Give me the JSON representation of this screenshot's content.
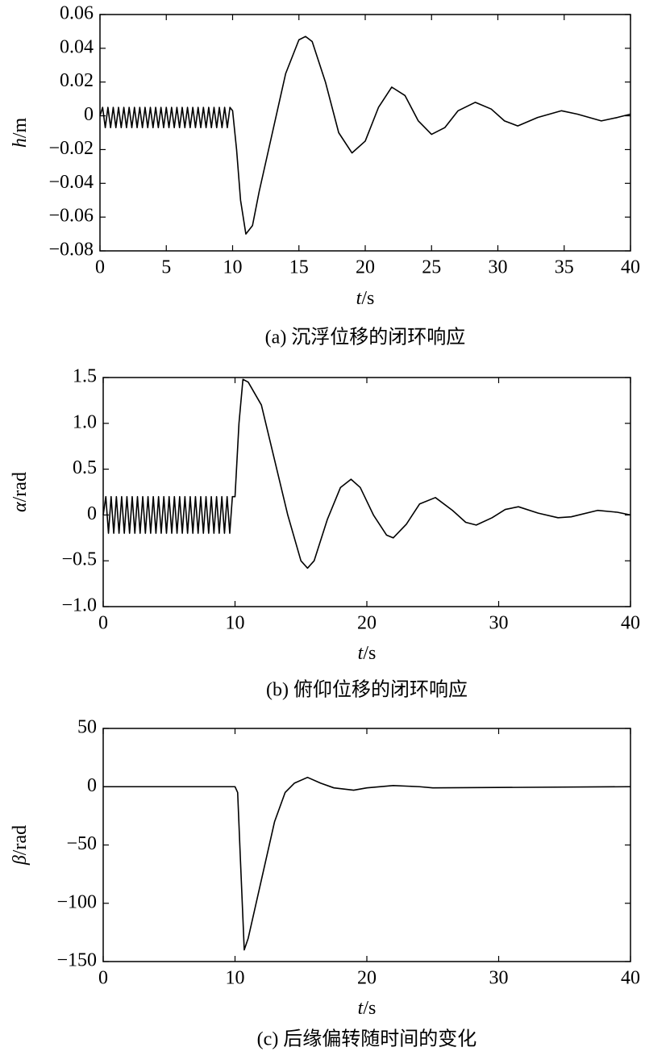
{
  "chart_data": [
    {
      "type": "line",
      "xlabel": "t/s",
      "ylabel": "h/m",
      "caption": "(a) 沉浮位移的闭环响应",
      "color": "#000000",
      "xlim": [
        0,
        40
      ],
      "xticks": [
        0,
        5,
        10,
        15,
        20,
        25,
        30,
        35,
        40
      ],
      "ylim": [
        -0.08,
        0.06
      ],
      "yticks": [
        {
          "value": -0.08,
          "label": "−0.08"
        },
        {
          "value": -0.06,
          "label": "−0.06"
        },
        {
          "value": -0.04,
          "label": "−0.04"
        },
        {
          "value": -0.02,
          "label": "−0.02"
        },
        0,
        0.02,
        0.04,
        0.06
      ],
      "x": [
        0,
        0.2,
        0.4,
        0.6,
        0.8,
        1,
        1.2,
        1.4,
        1.6,
        1.8,
        2,
        2.2,
        2.4,
        2.6,
        2.8,
        3,
        3.2,
        3.4,
        3.6,
        3.8,
        4,
        4.2,
        4.4,
        4.6,
        4.8,
        5,
        5.2,
        5.4,
        5.6,
        5.8,
        6,
        6.2,
        6.4,
        6.6,
        6.8,
        7,
        7.2,
        7.4,
        7.6,
        7.8,
        8,
        8.2,
        8.4,
        8.6,
        8.8,
        9,
        9.2,
        9.4,
        9.6,
        9.8,
        10,
        10.3,
        10.6,
        11,
        11.5,
        12,
        13,
        14,
        15,
        15.5,
        16,
        17,
        18,
        19,
        20,
        21,
        22,
        23,
        24,
        25,
        26,
        27,
        28.3,
        29.5,
        30.5,
        31.5,
        33,
        34.8,
        36,
        37.8,
        39,
        40
      ],
      "values": [
        0,
        0.005,
        -0.007,
        0.005,
        -0.007,
        0.005,
        -0.007,
        0.005,
        -0.007,
        0.005,
        -0.007,
        0.005,
        -0.007,
        0.005,
        -0.007,
        0.005,
        -0.007,
        0.005,
        -0.007,
        0.005,
        -0.007,
        0.005,
        -0.007,
        0.005,
        -0.007,
        0.005,
        -0.007,
        0.005,
        -0.007,
        0.005,
        -0.007,
        0.005,
        -0.007,
        0.005,
        -0.007,
        0.005,
        -0.007,
        0.005,
        -0.007,
        0.005,
        -0.007,
        0.005,
        -0.007,
        0.005,
        -0.007,
        0.005,
        -0.007,
        0.005,
        -0.007,
        0.005,
        0.003,
        -0.02,
        -0.05,
        -0.07,
        -0.065,
        -0.045,
        -0.01,
        0.025,
        0.045,
        0.047,
        0.044,
        0.02,
        -0.01,
        -0.022,
        -0.015,
        0.005,
        0.017,
        0.012,
        -0.003,
        -0.011,
        -0.007,
        0.003,
        0.008,
        0.004,
        -0.003,
        -0.006,
        -0.001,
        0.003,
        0.001,
        -0.003,
        -0.001,
        0.001
      ]
    },
    {
      "type": "line",
      "xlabel": "t/s",
      "ylabel": "α/rad",
      "caption": "(b) 俯仰位移的闭环响应",
      "color": "#000000",
      "xlim": [
        0,
        40
      ],
      "xticks": [
        0,
        10,
        20,
        30,
        40
      ],
      "ylim": [
        -1.0,
        1.5
      ],
      "yticks": [
        {
          "value": -1.0,
          "label": "−1.0"
        },
        {
          "value": -0.5,
          "label": "−0.5"
        },
        0,
        0.5,
        {
          "value": 1.0,
          "label": "1.0"
        },
        1.5
      ],
      "x": [
        0,
        0.2,
        0.4,
        0.6,
        0.8,
        1,
        1.2,
        1.4,
        1.6,
        1.8,
        2,
        2.2,
        2.4,
        2.6,
        2.8,
        3,
        3.2,
        3.4,
        3.6,
        3.8,
        4,
        4.2,
        4.4,
        4.6,
        4.8,
        5,
        5.2,
        5.4,
        5.6,
        5.8,
        6,
        6.2,
        6.4,
        6.6,
        6.8,
        7,
        7.2,
        7.4,
        7.6,
        7.8,
        8,
        8.2,
        8.4,
        8.6,
        8.8,
        9,
        9.2,
        9.4,
        9.6,
        9.8,
        10,
        10.3,
        10.6,
        11,
        12,
        13,
        14,
        15,
        15.5,
        16,
        17,
        18,
        18.8,
        19.5,
        20.5,
        21.5,
        22,
        23,
        24,
        25.2,
        26.5,
        27.5,
        28.3,
        29.5,
        30.5,
        31.5,
        33,
        34.5,
        35.5,
        37.5,
        39,
        40
      ],
      "values": [
        0,
        0.2,
        -0.2,
        0.2,
        -0.2,
        0.2,
        -0.2,
        0.2,
        -0.2,
        0.2,
        -0.2,
        0.2,
        -0.2,
        0.2,
        -0.2,
        0.2,
        -0.2,
        0.2,
        -0.2,
        0.2,
        -0.2,
        0.2,
        -0.2,
        0.2,
        -0.2,
        0.2,
        -0.2,
        0.2,
        -0.2,
        0.2,
        -0.2,
        0.2,
        -0.2,
        0.2,
        -0.2,
        0.2,
        -0.2,
        0.2,
        -0.2,
        0.2,
        -0.2,
        0.2,
        -0.2,
        0.2,
        -0.2,
        0.2,
        -0.2,
        0.2,
        -0.2,
        0.2,
        0.2,
        1.0,
        1.48,
        1.45,
        1.2,
        0.6,
        0,
        -0.5,
        -0.58,
        -0.5,
        -0.05,
        0.3,
        0.39,
        0.3,
        0,
        -0.22,
        -0.25,
        -0.1,
        0.12,
        0.19,
        0.05,
        -0.08,
        -0.11,
        -0.03,
        0.06,
        0.09,
        0.02,
        -0.03,
        -0.02,
        0.05,
        0.03,
        0
      ]
    },
    {
      "type": "line",
      "xlabel": "t/s",
      "ylabel": "β/rad",
      "caption": "(c) 后缘偏转随时间的变化",
      "color": "#000000",
      "xlim": [
        0,
        40
      ],
      "xticks": [
        0,
        10,
        20,
        30,
        40
      ],
      "ylim": [
        -150,
        50
      ],
      "yticks": [
        {
          "value": -150,
          "label": "−150"
        },
        {
          "value": -100,
          "label": "−100"
        },
        {
          "value": -50,
          "label": "−50"
        },
        0,
        50
      ],
      "x": [
        0,
        10,
        10.2,
        10.4,
        10.7,
        11,
        12,
        13,
        13.8,
        14.5,
        15.5,
        16.5,
        17.5,
        19,
        20,
        22,
        24,
        25,
        40
      ],
      "values": [
        0,
        0,
        -5,
        -60,
        -140,
        -130,
        -80,
        -30,
        -5,
        3,
        8,
        3,
        -1,
        -3,
        -1,
        1,
        0,
        -1,
        0
      ]
    }
  ]
}
